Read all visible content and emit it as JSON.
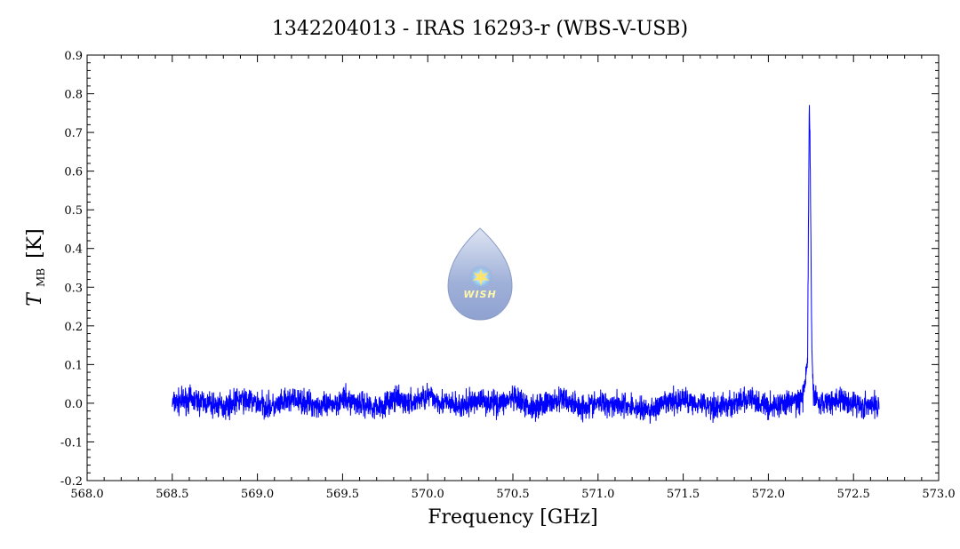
{
  "chart_data": {
    "type": "line",
    "title": "1342204013 - IRAS 16293-r (WBS-V-USB)",
    "xlabel": "Frequency [GHz]",
    "ylabel_main": "T",
    "ylabel_sub": "MB",
    "ylabel_unit": "[K]",
    "xlim": [
      568.0,
      573.0
    ],
    "ylim": [
      -0.2,
      0.9
    ],
    "xticks": [
      "568.0",
      "568.5",
      "569.0",
      "569.5",
      "570.0",
      "570.5",
      "571.0",
      "571.5",
      "572.0",
      "572.5",
      "573.0"
    ],
    "yticks": [
      "-0.2",
      "-0.1",
      "0.0",
      "0.1",
      "0.2",
      "0.3",
      "0.4",
      "0.5",
      "0.6",
      "0.7",
      "0.8",
      "0.9"
    ],
    "grid": false,
    "legend": "none",
    "series": [
      {
        "color": "#0000ff",
        "x": [
          568.5,
          568.6,
          568.7,
          568.8,
          568.9,
          569.0,
          569.1,
          569.2,
          569.3,
          569.4,
          569.5,
          569.6,
          569.7,
          569.8,
          569.9,
          570.0,
          570.1,
          570.2,
          570.3,
          570.4,
          570.5,
          570.6,
          570.7,
          570.8,
          570.9,
          571.0,
          571.1,
          571.2,
          571.3,
          571.4,
          571.5,
          571.6,
          571.7,
          571.8,
          571.9,
          572.0,
          572.1,
          572.2,
          572.23,
          572.24,
          572.245,
          572.25,
          572.255,
          572.26,
          572.27,
          572.3,
          572.4,
          572.5,
          572.6,
          572.65
        ],
        "y": [
          0.0,
          0.01,
          0.0,
          -0.01,
          0.01,
          0.0,
          -0.01,
          0.01,
          0.0,
          -0.01,
          0.01,
          0.0,
          -0.01,
          0.01,
          0.0,
          0.02,
          0.0,
          -0.01,
          0.01,
          0.0,
          0.01,
          -0.01,
          0.0,
          0.01,
          -0.01,
          0.0,
          0.0,
          -0.01,
          -0.02,
          0.0,
          0.01,
          0.0,
          -0.01,
          0.0,
          0.01,
          -0.01,
          0.0,
          0.01,
          0.1,
          0.78,
          0.65,
          0.4,
          0.15,
          0.05,
          0.02,
          0.0,
          0.01,
          0.0,
          -0.01,
          0.0
        ]
      }
    ],
    "noise_amplitude": 0.03
  },
  "logo": {
    "text": "WISH"
  }
}
